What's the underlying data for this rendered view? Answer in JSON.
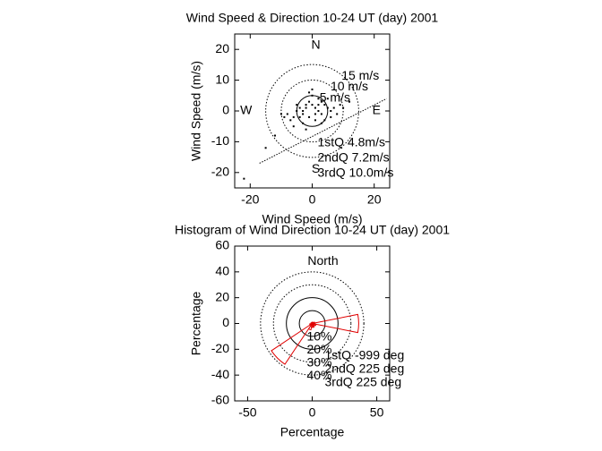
{
  "chart_data": [
    {
      "type": "scatter",
      "title": "Wind Speed & Direction 10-24 UT (day) 2001",
      "xlabel": "Wind Speed (m/s)",
      "ylabel": "Wind Speed (m/s)",
      "xlim": [
        -25,
        25
      ],
      "ylim": [
        -25,
        25
      ],
      "xticks": [
        -20,
        0,
        20
      ],
      "yticks": [
        -20,
        -10,
        0,
        10,
        20
      ],
      "color": "#000000",
      "x": [
        -8,
        -6,
        -5,
        -4,
        -3,
        -2,
        -1,
        0,
        1,
        2,
        3,
        4,
        5,
        6,
        -7,
        -9,
        -3,
        -1,
        1,
        3,
        2,
        0,
        -2,
        -4,
        -5,
        7,
        8,
        4,
        -6,
        -10,
        10,
        -1,
        1,
        2,
        -3,
        5,
        6,
        -12,
        9,
        3,
        -2,
        0,
        -15,
        12,
        -22
      ],
      "y": [
        -1,
        -2,
        0,
        1,
        -1,
        2,
        3,
        2,
        1,
        0,
        -1,
        2,
        1,
        0,
        -3,
        -2,
        -4,
        -2,
        -3,
        3,
        4,
        5,
        1,
        -2,
        2,
        1,
        -1,
        -3,
        -5,
        -1,
        1,
        6,
        -1,
        2,
        0,
        4,
        -2,
        -8,
        2,
        -4,
        -6,
        7,
        -12,
        3,
        -22
      ],
      "fit_line": {
        "x": [
          -17,
          24
        ],
        "y": [
          -17,
          4
        ]
      },
      "rings": [
        {
          "value": 5,
          "label": "5 m/s"
        },
        {
          "value": 10,
          "label": "10 m/s"
        },
        {
          "value": 15,
          "label": "15 m/s"
        }
      ],
      "compass": [
        "N",
        "E",
        "S",
        "W"
      ],
      "annotations": [
        "1stQ 4.8m/s",
        "2ndQ 7.2m/s",
        "3rdQ 10.0m/s"
      ],
      "annotation_color": "#e00000"
    },
    {
      "type": "polar-histogram",
      "title": "Histogram of Wind Direction 10-24 UT (day) 2001",
      "xlabel": "Percentage",
      "ylabel": "Percentage",
      "xlim": [
        -60,
        60
      ],
      "ylim": [
        -60,
        60
      ],
      "xticks": [
        -50,
        0,
        50
      ],
      "yticks": [
        -60,
        -40,
        -20,
        0,
        20,
        40,
        60
      ],
      "color": "#e00000",
      "directions": [
        0,
        22.5,
        45,
        67.5,
        90,
        112.5,
        135,
        157.5,
        180,
        202.5,
        225,
        247.5,
        270,
        292.5,
        315,
        337.5
      ],
      "values": [
        1,
        1,
        1,
        2,
        36,
        3,
        2,
        3,
        3,
        5,
        38,
        2,
        1,
        1,
        0.5,
        0.5
      ],
      "rings": [
        {
          "value": 10,
          "label": "10%"
        },
        {
          "value": 20,
          "label": "20%"
        },
        {
          "value": 30,
          "label": "30%"
        },
        {
          "value": 40,
          "label": "40%"
        }
      ],
      "north_label": "North",
      "annotations": [
        "1stQ -999 deg",
        "2ndQ 225 deg",
        "3rdQ 225 deg"
      ],
      "annotation_color": "#e00000"
    }
  ]
}
